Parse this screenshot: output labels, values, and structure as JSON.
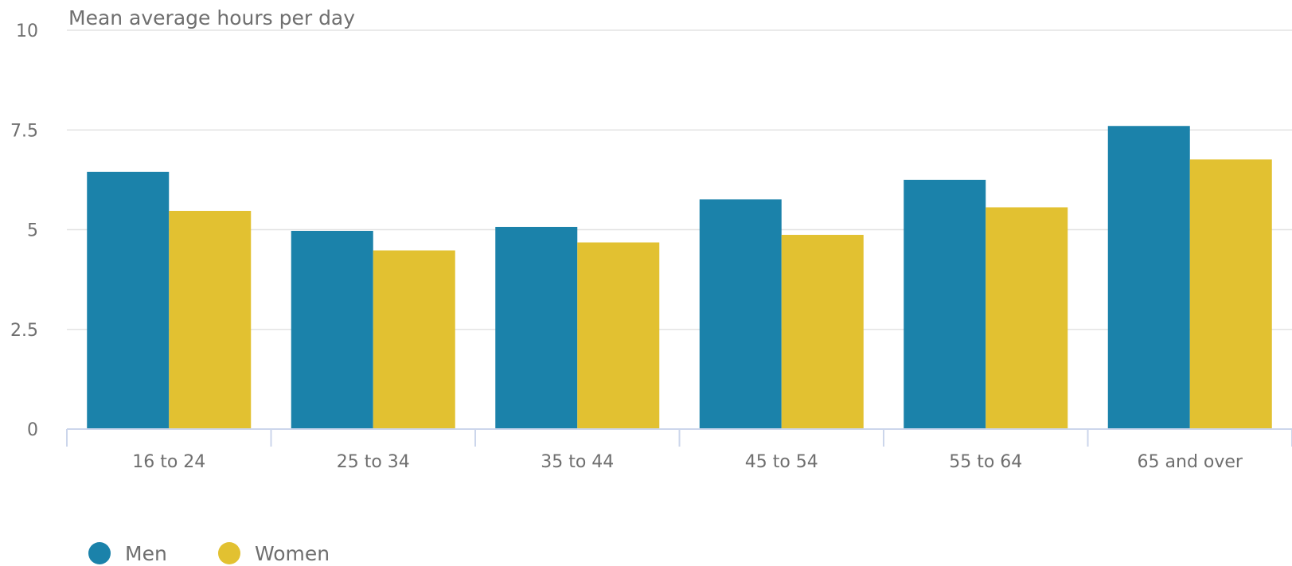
{
  "chart_data": {
    "type": "bar",
    "title": "",
    "xlabel": "",
    "ylabel": "Mean average hours per day",
    "ylim": [
      0,
      10
    ],
    "yticks": [
      "0",
      "2.5",
      "5",
      "7.5",
      "10"
    ],
    "categories": [
      "16 to 24",
      "25 to 34",
      "35 to 44",
      "45 to 54",
      "55 to 64",
      "65 and over"
    ],
    "series": [
      {
        "name": "Men",
        "color": "#1b82aa",
        "values": [
          6.45,
          4.97,
          5.07,
          5.76,
          6.25,
          7.6
        ]
      },
      {
        "name": "Women",
        "color": "#e2c131",
        "values": [
          5.47,
          4.48,
          4.68,
          4.87,
          5.56,
          6.76
        ]
      }
    ],
    "grid": true,
    "legend_position": "bottom-left"
  }
}
